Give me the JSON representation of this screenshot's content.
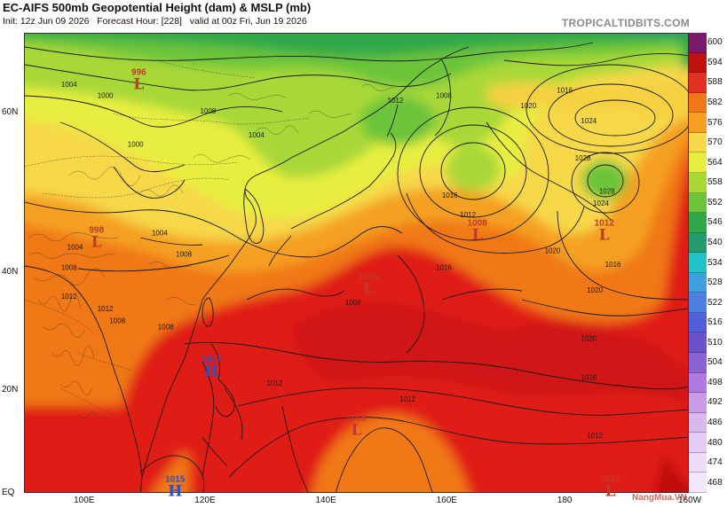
{
  "header": {
    "title": "EC-AIFS 500mb Geopotential Height (dam) & MSLP (mb)",
    "init": "Init: 12z Jun 09 2026",
    "forecast_hour": "Forecast Hour: [228]",
    "valid": "valid at 00z Fri, Jun 19 2026",
    "credit": "TROPICALTIDBITS.COM"
  },
  "watermark": "NangMua.VN",
  "lat_labels": [
    "60N",
    "40N",
    "20N",
    "EQ"
  ],
  "lon_labels": [
    "100E",
    "120E",
    "140E",
    "160E",
    "180",
    "160W"
  ],
  "colorbar": {
    "labels": [
      "600",
      "594",
      "588",
      "582",
      "576",
      "570",
      "564",
      "558",
      "552",
      "546",
      "540",
      "534",
      "528",
      "522",
      "516",
      "510",
      "504",
      "498",
      "492",
      "486",
      "480",
      "474",
      "468"
    ],
    "colors": [
      "#7a1a6a",
      "#c01010",
      "#e03020",
      "#f07818",
      "#f5a020",
      "#f7d84a",
      "#e8ee40",
      "#a8d838",
      "#6cc43a",
      "#2ea84a",
      "#249b6a",
      "#22c3c8",
      "#3fa0e0",
      "#4f7fe0",
      "#5060d8",
      "#6a52c8",
      "#8a62d2",
      "#b07ae0",
      "#c89ae8",
      "#d9b8ee",
      "#e4ccf2",
      "#ecdcf6",
      "#f3e8fa"
    ]
  },
  "centers": [
    {
      "type": "L",
      "value": "996",
      "lon": 109,
      "lat": 63
    },
    {
      "type": "L",
      "value": "998",
      "lon": 102,
      "lat": 45
    },
    {
      "type": "L",
      "value": "1006",
      "lon": 147,
      "lat": 38
    },
    {
      "type": "L",
      "value": "1008",
      "lon": 165,
      "lat": 46
    },
    {
      "type": "L",
      "value": "1012",
      "lon": 186,
      "lat": 46
    },
    {
      "type": "H",
      "value": "1017",
      "lon": 121,
      "lat": 24
    },
    {
      "type": "L",
      "value": "1008",
      "lon": 145,
      "lat": 13
    },
    {
      "type": "H",
      "value": "1015",
      "lon": 115,
      "lat": 1
    },
    {
      "type": "L",
      "value": "1011",
      "lon": 187,
      "lat": 1
    }
  ],
  "isobar_labels": [
    {
      "t": "1004",
      "lon": 96,
      "lat": 62.5
    },
    {
      "t": "1000",
      "lon": 102,
      "lat": 61.5
    },
    {
      "t": "1000",
      "lon": 107,
      "lat": 56.5
    },
    {
      "t": "1004",
      "lon": 127,
      "lat": 57.5
    },
    {
      "t": "1008",
      "lon": 119,
      "lat": 60
    },
    {
      "t": "1012",
      "lon": 150,
      "lat": 61
    },
    {
      "t": "1008",
      "lon": 158,
      "lat": 61.5
    },
    {
      "t": "1016",
      "lon": 178,
      "lat": 62
    },
    {
      "t": "1020",
      "lon": 172,
      "lat": 60.5
    },
    {
      "t": "1024",
      "lon": 182,
      "lat": 59
    },
    {
      "t": "1028",
      "lon": 181,
      "lat": 55
    },
    {
      "t": "1016",
      "lon": 159,
      "lat": 50.5
    },
    {
      "t": "1012",
      "lon": 162,
      "lat": 48
    },
    {
      "t": "1020",
      "lon": 176,
      "lat": 43
    },
    {
      "t": "1028",
      "lon": 185,
      "lat": 51
    },
    {
      "t": "1024",
      "lon": 184,
      "lat": 49.5
    },
    {
      "t": "1016",
      "lon": 186,
      "lat": 41
    },
    {
      "t": "1020",
      "lon": 183,
      "lat": 37
    },
    {
      "t": "1016",
      "lon": 158,
      "lat": 40.5
    },
    {
      "t": "1004",
      "lon": 111,
      "lat": 45.5
    },
    {
      "t": "1004",
      "lon": 97,
      "lat": 43.5
    },
    {
      "t": "1008",
      "lon": 96,
      "lat": 40.5
    },
    {
      "t": "1008",
      "lon": 115,
      "lat": 42.5
    },
    {
      "t": "1008",
      "lon": 143,
      "lat": 35
    },
    {
      "t": "1008",
      "lon": 104,
      "lat": 32
    },
    {
      "t": "1008",
      "lon": 112,
      "lat": 31
    },
    {
      "t": "1012",
      "lon": 96,
      "lat": 36
    },
    {
      "t": "1012",
      "lon": 102,
      "lat": 34
    },
    {
      "t": "1020",
      "lon": 182,
      "lat": 29
    },
    {
      "t": "1016",
      "lon": 182,
      "lat": 22
    },
    {
      "t": "1012",
      "lon": 130,
      "lat": 21
    },
    {
      "t": "1012",
      "lon": 152,
      "lat": 18
    },
    {
      "t": "1012",
      "lon": 183,
      "lat": 11
    }
  ]
}
